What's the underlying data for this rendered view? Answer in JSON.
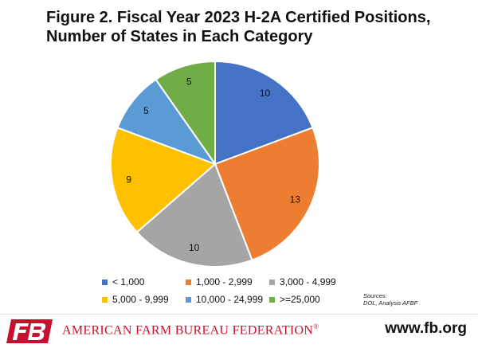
{
  "chart_data": {
    "type": "pie",
    "title_lines": [
      "Figure 2. Fiscal Year 2023 H-2A Certified Positions,",
      "Number of States in Each Category"
    ],
    "slices": [
      {
        "label": "< 1,000",
        "value": 10,
        "color": "#4472c4"
      },
      {
        "label": "1,000 - 2,999",
        "value": 13,
        "color": "#ed7d31"
      },
      {
        "label": "3,000 - 4,999",
        "value": 10,
        "color": "#a5a5a5"
      },
      {
        "label": "5,000 - 9,999",
        "value": 9,
        "color": "#ffc000"
      },
      {
        "label": "10,000 - 24,999",
        "value": 5,
        "color": "#5b9bd5"
      },
      {
        "label": ">=25,000",
        "value": 5,
        "color": "#70ad47"
      }
    ],
    "legend_position": "bottom",
    "start": "12 o'clock, clockwise"
  },
  "sources": {
    "line1": "Sources:",
    "line2": "DOL, Analysis AFBF"
  },
  "footer": {
    "org_name": "American Farm Bureau Federation",
    "trademark": "®",
    "logo_text": "FB",
    "website": "www.fb.org",
    "brand_color": "#c8102e"
  }
}
